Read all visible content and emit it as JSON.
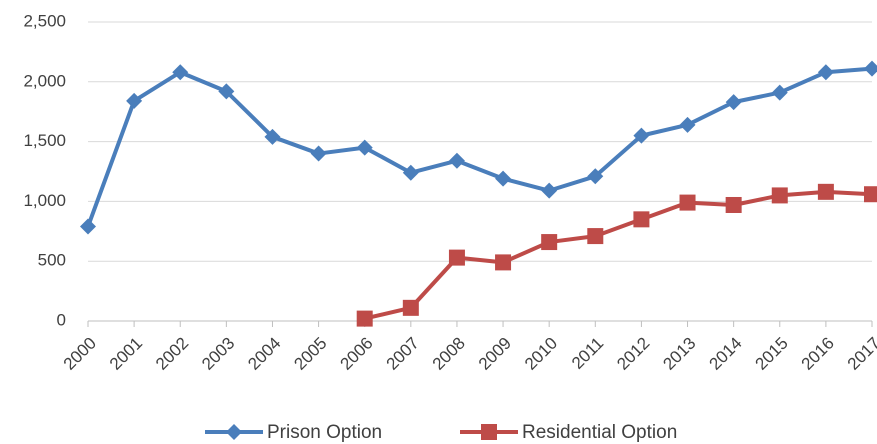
{
  "chart_data": {
    "type": "line",
    "categories": [
      "2000",
      "2001",
      "2002",
      "2003",
      "2004",
      "2005",
      "2006",
      "2007",
      "2008",
      "2009",
      "2010",
      "2011",
      "2012",
      "2013",
      "2014",
      "2015",
      "2016",
      "2017"
    ],
    "series": [
      {
        "name": "Prison Option",
        "color": "#4a7ebb",
        "marker": "diamond",
        "values": [
          790,
          1840,
          2080,
          1920,
          1540,
          1400,
          1450,
          1240,
          1340,
          1190,
          1090,
          1210,
          1550,
          1640,
          1830,
          1910,
          2080,
          2110
        ]
      },
      {
        "name": "Residential Option",
        "color": "#be4b48",
        "marker": "square",
        "values": [
          null,
          null,
          null,
          null,
          null,
          null,
          20,
          110,
          530,
          490,
          660,
          710,
          850,
          990,
          970,
          1050,
          1080,
          1060
        ]
      }
    ],
    "ylim": [
      0,
      2500
    ],
    "yticks": [
      0,
      500,
      {
        "value": 1000,
        "label": "1,000"
      },
      {
        "value": 1500,
        "label": "1,500"
      },
      {
        "value": 2000,
        "label": "2,000"
      },
      {
        "value": 2500,
        "label": "2,500"
      }
    ],
    "grid": true,
    "legend": "bottom"
  }
}
